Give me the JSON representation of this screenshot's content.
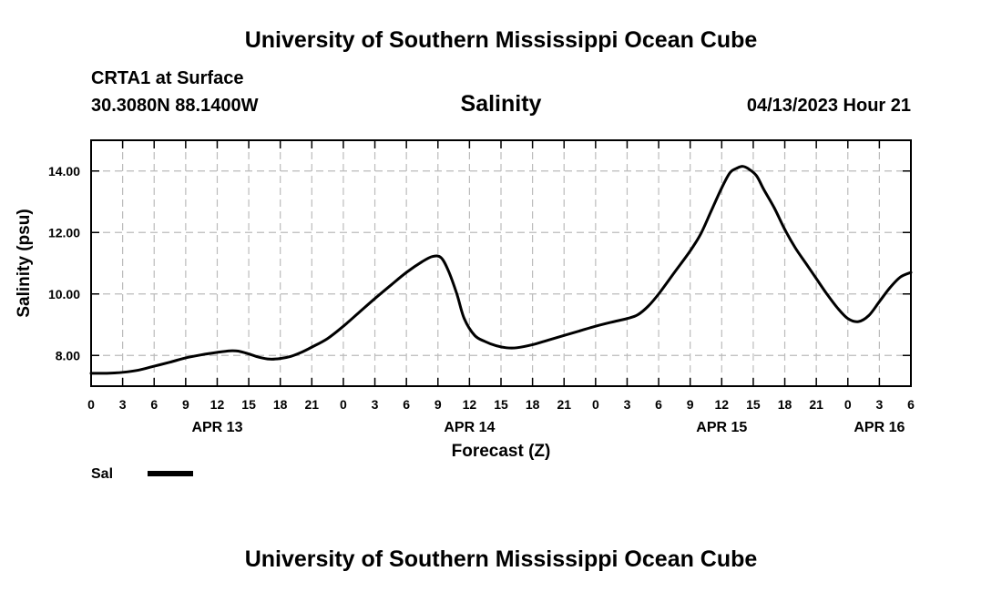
{
  "header": {
    "title": "University of Southern Mississippi Ocean Cube",
    "station": "CRTA1 at Surface",
    "coords": "30.3080N  88.1400W",
    "variable": "Salinity",
    "datetime": "04/13/2023 Hour 21"
  },
  "footer": {
    "title": "University of Southern Mississippi Ocean Cube"
  },
  "chart_data": {
    "type": "line",
    "title": "Salinity",
    "xlabel": "Forecast (Z)",
    "ylabel": "Salinity (psu)",
    "xlim": [
      0,
      78
    ],
    "ylim": [
      7.0,
      15.0
    ],
    "x_unit": "hours since APR 13 00Z",
    "yticks": [
      8.0,
      10.0,
      12.0,
      14.0
    ],
    "ytick_labels": [
      "8.00",
      "10.00",
      "12.00",
      "14.00"
    ],
    "xticks": [
      0,
      3,
      6,
      9,
      12,
      15,
      18,
      21,
      24,
      27,
      30,
      33,
      36,
      39,
      42,
      45,
      48,
      51,
      54,
      57,
      60,
      63,
      66,
      69,
      72,
      75,
      78
    ],
    "xtick_labels": [
      "0",
      "3",
      "6",
      "9",
      "12",
      "15",
      "18",
      "21",
      "0",
      "3",
      "6",
      "9",
      "12",
      "15",
      "18",
      "21",
      "0",
      "3",
      "6",
      "9",
      "12",
      "15",
      "18",
      "21",
      "0",
      "3",
      "6"
    ],
    "date_labels": [
      {
        "x": 12,
        "label": "APR 13"
      },
      {
        "x": 36,
        "label": "APR 14"
      },
      {
        "x": 60,
        "label": "APR 15"
      },
      {
        "x": 75,
        "label": "APR 16"
      }
    ],
    "grid": true,
    "legend": "bottom-left",
    "series": [
      {
        "name": "Sal",
        "color": "#000000",
        "points": [
          [
            0,
            7.42
          ],
          [
            1.5,
            7.42
          ],
          [
            3,
            7.45
          ],
          [
            4.5,
            7.52
          ],
          [
            6,
            7.65
          ],
          [
            7.5,
            7.78
          ],
          [
            9,
            7.92
          ],
          [
            10.5,
            8.02
          ],
          [
            12,
            8.1
          ],
          [
            13.2,
            8.15
          ],
          [
            14,
            8.14
          ],
          [
            15,
            8.05
          ],
          [
            16,
            7.94
          ],
          [
            17,
            7.88
          ],
          [
            18,
            7.9
          ],
          [
            19,
            7.97
          ],
          [
            20,
            8.1
          ],
          [
            21,
            8.27
          ],
          [
            22.5,
            8.55
          ],
          [
            24,
            8.95
          ],
          [
            25.5,
            9.4
          ],
          [
            27,
            9.85
          ],
          [
            28.5,
            10.28
          ],
          [
            30,
            10.7
          ],
          [
            31.5,
            11.05
          ],
          [
            32.5,
            11.22
          ],
          [
            33.3,
            11.18
          ],
          [
            34,
            10.75
          ],
          [
            34.8,
            10.0
          ],
          [
            35.5,
            9.2
          ],
          [
            36.5,
            8.65
          ],
          [
            37.5,
            8.45
          ],
          [
            38.5,
            8.32
          ],
          [
            39.5,
            8.25
          ],
          [
            40.5,
            8.25
          ],
          [
            42,
            8.35
          ],
          [
            43.5,
            8.5
          ],
          [
            45,
            8.65
          ],
          [
            46.5,
            8.8
          ],
          [
            48,
            8.95
          ],
          [
            49.5,
            9.08
          ],
          [
            51,
            9.2
          ],
          [
            52,
            9.32
          ],
          [
            53,
            9.6
          ],
          [
            54,
            10.0
          ],
          [
            55.5,
            10.7
          ],
          [
            57,
            11.4
          ],
          [
            58,
            11.95
          ],
          [
            59,
            12.7
          ],
          [
            60,
            13.45
          ],
          [
            60.8,
            13.95
          ],
          [
            61.5,
            14.1
          ],
          [
            62,
            14.15
          ],
          [
            62.5,
            14.08
          ],
          [
            63.3,
            13.85
          ],
          [
            64,
            13.4
          ],
          [
            65,
            12.8
          ],
          [
            66,
            12.1
          ],
          [
            67,
            11.5
          ],
          [
            68,
            11.0
          ],
          [
            69,
            10.5
          ],
          [
            70,
            10.0
          ],
          [
            71,
            9.55
          ],
          [
            72,
            9.2
          ],
          [
            73,
            9.1
          ],
          [
            74,
            9.3
          ],
          [
            75,
            9.75
          ],
          [
            76,
            10.2
          ],
          [
            77,
            10.55
          ],
          [
            78,
            10.7
          ]
        ]
      }
    ]
  }
}
